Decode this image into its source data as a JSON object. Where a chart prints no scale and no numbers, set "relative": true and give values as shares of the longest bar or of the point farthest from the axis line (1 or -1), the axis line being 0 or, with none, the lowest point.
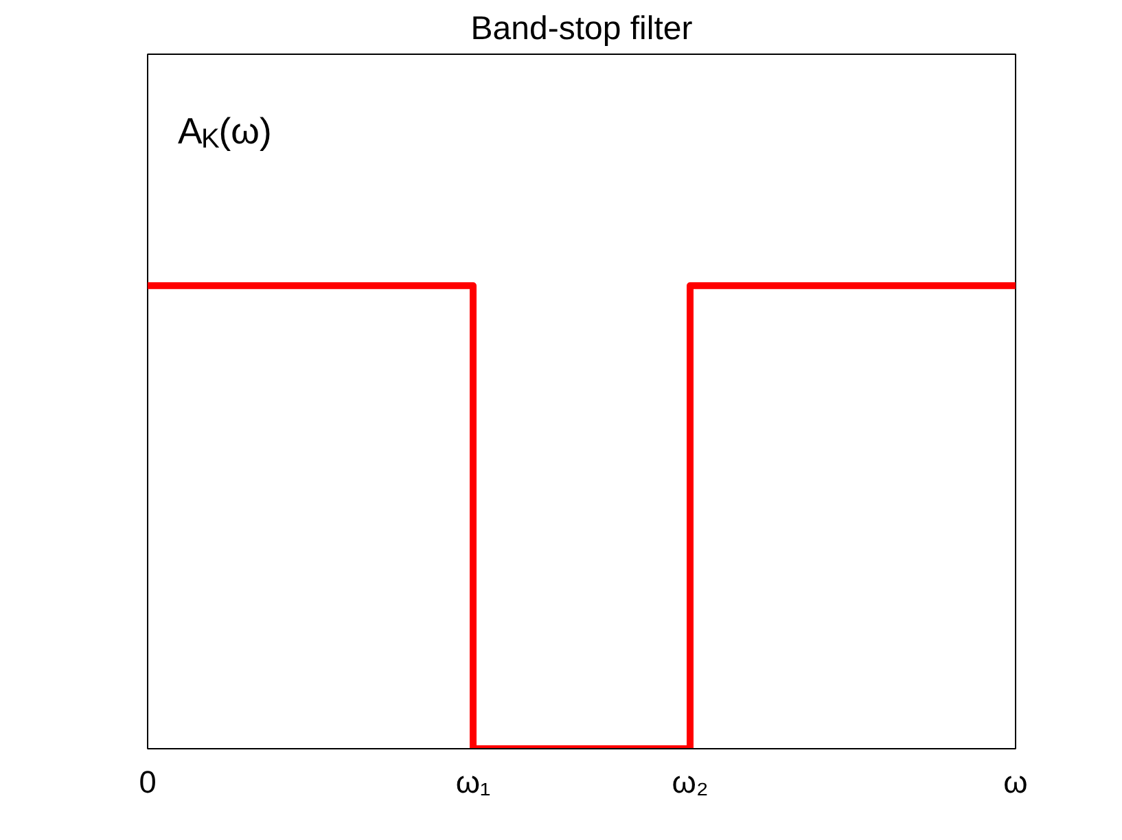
{
  "chart_data": {
    "type": "step",
    "title": "Band-stop filter",
    "categories": [
      "0",
      null,
      null,
      "ω₁",
      null,
      "ω₂",
      null,
      null,
      "ω"
    ],
    "series": [
      {
        "color": "#ff0000",
        "values": [
          1,
          1,
          1,
          0,
          0,
          1,
          1,
          1,
          1
        ]
      }
    ],
    "relative": true,
    "tick_labels": "x",
    "annotations": [
      "A$_{K}$(ω)"
    ],
    "grid": false,
    "marker": "none",
    "line_style": "solid"
  }
}
